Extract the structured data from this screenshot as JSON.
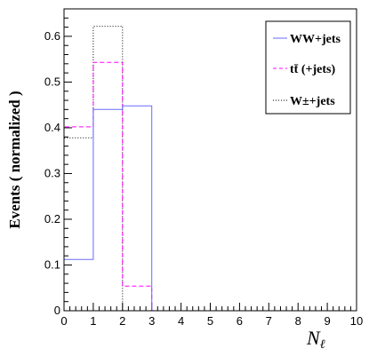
{
  "chart_data": {
    "type": "histogram",
    "xlabel": "N_ℓ",
    "ylabel": "Events  ( normalized )",
    "xlim": [
      0,
      10
    ],
    "ylim": [
      0,
      0.66
    ],
    "xticks": [
      "0",
      "1",
      "2",
      "3",
      "4",
      "5",
      "6",
      "7",
      "8",
      "9",
      "10"
    ],
    "yticks": [
      "0",
      "0.1",
      "0.2",
      "0.3",
      "0.4",
      "0.5",
      "0.6"
    ],
    "grid": false,
    "legend_position": "top-right",
    "bin_edges": [
      0,
      1,
      2,
      3,
      4,
      5,
      6,
      7,
      8,
      9,
      10
    ],
    "series": [
      {
        "name": "WW+jets",
        "color": "#6a6aff",
        "dash": "solid",
        "values": [
          0.112,
          0.44,
          0.448,
          0,
          0,
          0,
          0,
          0,
          0,
          0
        ]
      },
      {
        "name": "tt̄ (+jets)",
        "color": "#ff00ff",
        "dash": "dashed",
        "values": [
          0.402,
          0.543,
          0.054,
          0,
          0,
          0,
          0,
          0,
          0,
          0
        ]
      },
      {
        "name": "W±+jets",
        "color": "#000000",
        "dash": "dotted",
        "values": [
          0.378,
          0.622,
          0,
          0,
          0,
          0,
          0,
          0,
          0,
          0
        ]
      }
    ]
  }
}
